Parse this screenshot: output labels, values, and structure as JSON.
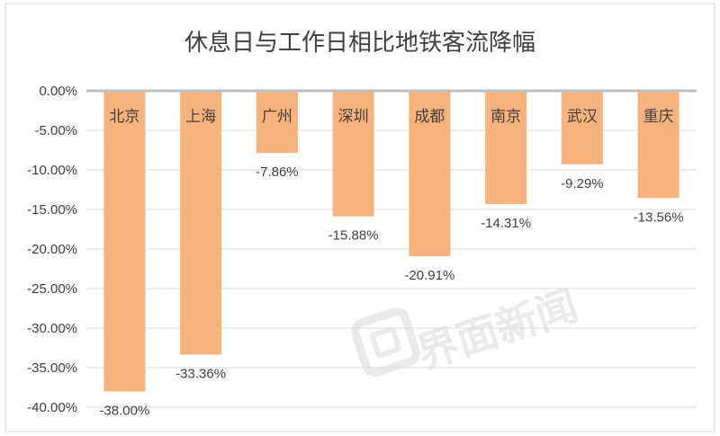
{
  "chart_data": {
    "type": "bar",
    "title": "休息日与工作日相比地铁客流降幅",
    "categories": [
      "北京",
      "上海",
      "广州",
      "深圳",
      "成都",
      "南京",
      "武汉",
      "重庆"
    ],
    "values": [
      -38.0,
      -33.36,
      -7.86,
      -15.88,
      -20.91,
      -14.31,
      -9.29,
      -13.56
    ],
    "value_labels": [
      "-38.00%",
      "-33.36%",
      "-7.86%",
      "-15.88%",
      "-20.91%",
      "-14.31%",
      "-9.29%",
      "-13.56%"
    ],
    "y_ticks": [
      "0.00%",
      "-5.00%",
      "-10.00%",
      "-15.00%",
      "-20.00%",
      "-25.00%",
      "-30.00%",
      "-35.00%",
      "-40.00%"
    ],
    "ylim": [
      -40,
      0
    ],
    "xlabel": "",
    "ylabel": "",
    "grid": true,
    "bar_color": "#f8b27c",
    "axis_color": "#bfbfbf",
    "gridline_color": "#d9d9d9",
    "text_color": "#404040"
  },
  "watermark": {
    "text": "界面新闻",
    "icon": "jiemian-logo-icon"
  }
}
